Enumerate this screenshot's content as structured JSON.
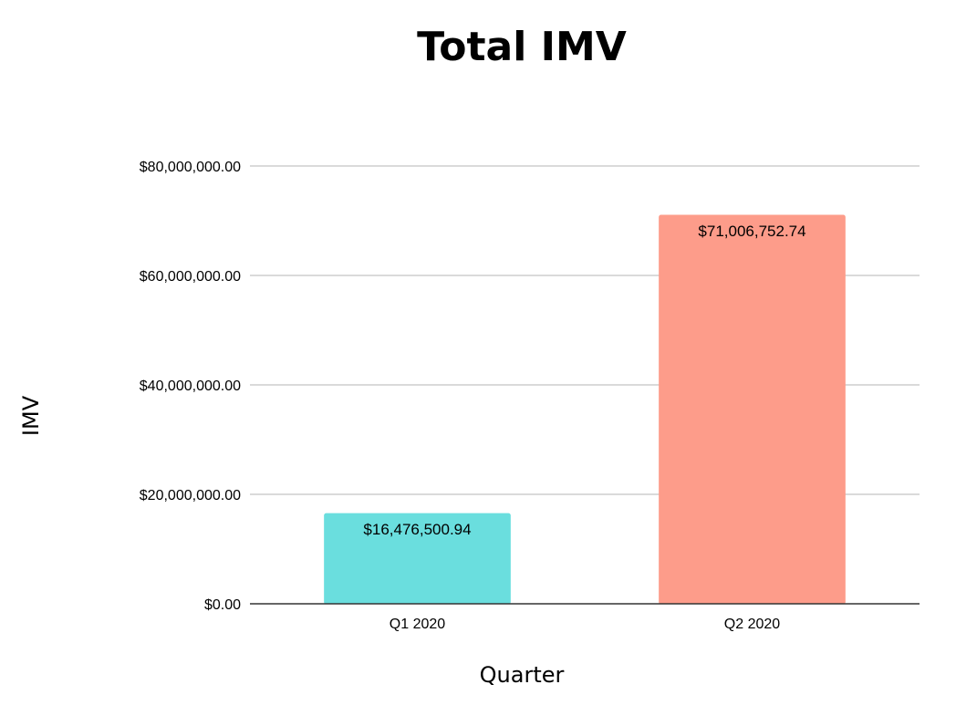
{
  "chart_data": {
    "type": "bar",
    "title": "Total IMV",
    "xlabel": "Quarter",
    "ylabel": "IMV",
    "categories": [
      "Q1 2020",
      "Q2 2020"
    ],
    "values": [
      16476500.94,
      71006752.74
    ],
    "value_labels": [
      "$16,476,500.94",
      "$71,006,752.74"
    ],
    "bar_colors": [
      "#6adede",
      "#fd9c8a"
    ],
    "ylim": [
      0,
      80000000
    ],
    "y_ticks": [
      0,
      20000000,
      40000000,
      60000000,
      80000000
    ],
    "y_tick_labels": [
      "$0.00",
      "$20,000,000.00",
      "$40,000,000.00",
      "$60,000,000.00",
      "$80,000,000.00"
    ],
    "grid": true,
    "legend": "none"
  }
}
